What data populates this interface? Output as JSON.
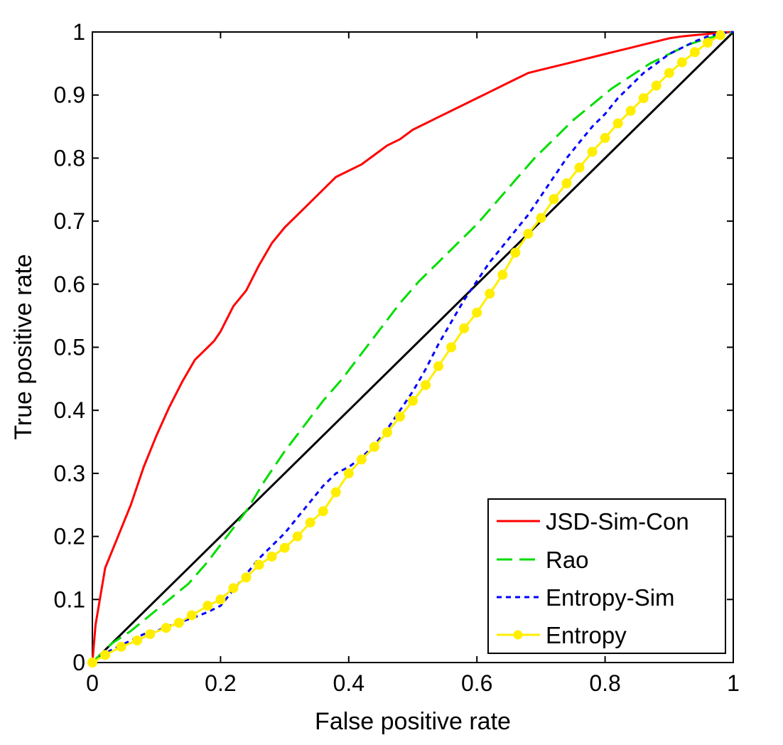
{
  "chart_data": {
    "type": "line",
    "xlabel": "False positive rate",
    "ylabel": "True positive rate",
    "xlim": [
      0,
      1
    ],
    "ylim": [
      0,
      1
    ],
    "xticks": [
      "0",
      "0.2",
      "0.4",
      "0.6",
      "0.8",
      "1"
    ],
    "yticks": [
      "0",
      "0.1",
      "0.2",
      "0.3",
      "0.4",
      "0.5",
      "0.6",
      "0.7",
      "0.8",
      "0.9",
      "1"
    ],
    "grid": false,
    "legend_position": "bottom-right",
    "reference_line": {
      "x": [
        0,
        1
      ],
      "y": [
        0,
        1
      ],
      "color": "#000000"
    },
    "series": [
      {
        "name": "JSD-Sim-Con",
        "color": "#ff0000",
        "style": "solid",
        "x": [
          0,
          0.005,
          0.02,
          0.04,
          0.06,
          0.08,
          0.1,
          0.12,
          0.14,
          0.16,
          0.18,
          0.19,
          0.2,
          0.22,
          0.24,
          0.26,
          0.28,
          0.3,
          0.33,
          0.36,
          0.38,
          0.4,
          0.42,
          0.44,
          0.46,
          0.48,
          0.5,
          0.52,
          0.54,
          0.56,
          0.58,
          0.6,
          0.62,
          0.64,
          0.66,
          0.68,
          0.7,
          0.72,
          0.74,
          0.76,
          0.78,
          0.8,
          0.82,
          0.84,
          0.86,
          0.88,
          0.9,
          0.92,
          0.94,
          0.96,
          0.98,
          1.0
        ],
        "y": [
          0,
          0.06,
          0.15,
          0.2,
          0.25,
          0.31,
          0.36,
          0.405,
          0.445,
          0.48,
          0.5,
          0.51,
          0.525,
          0.565,
          0.59,
          0.63,
          0.665,
          0.69,
          0.72,
          0.75,
          0.77,
          0.78,
          0.79,
          0.805,
          0.82,
          0.83,
          0.845,
          0.855,
          0.865,
          0.875,
          0.885,
          0.895,
          0.905,
          0.915,
          0.925,
          0.935,
          0.94,
          0.945,
          0.95,
          0.955,
          0.96,
          0.965,
          0.97,
          0.975,
          0.98,
          0.985,
          0.99,
          0.993,
          0.995,
          0.997,
          0.999,
          1.0
        ]
      },
      {
        "name": "Rao",
        "color": "#00dd00",
        "style": "dashed",
        "x": [
          0,
          0.03,
          0.06,
          0.09,
          0.12,
          0.15,
          0.18,
          0.21,
          0.24,
          0.27,
          0.3,
          0.33,
          0.36,
          0.39,
          0.42,
          0.45,
          0.48,
          0.51,
          0.54,
          0.57,
          0.6,
          0.63,
          0.66,
          0.69,
          0.72,
          0.75,
          0.78,
          0.81,
          0.84,
          0.87,
          0.9,
          0.93,
          0.96,
          1.0
        ],
        "y": [
          0,
          0.03,
          0.05,
          0.075,
          0.1,
          0.125,
          0.16,
          0.2,
          0.24,
          0.29,
          0.335,
          0.375,
          0.415,
          0.45,
          0.49,
          0.53,
          0.57,
          0.605,
          0.635,
          0.665,
          0.695,
          0.73,
          0.765,
          0.8,
          0.83,
          0.86,
          0.885,
          0.91,
          0.93,
          0.95,
          0.965,
          0.98,
          0.99,
          1.0
        ]
      },
      {
        "name": "Entropy-Sim",
        "color": "#0000ff",
        "style": "dotted",
        "x": [
          0,
          0.02,
          0.04,
          0.06,
          0.08,
          0.1,
          0.12,
          0.14,
          0.16,
          0.18,
          0.2,
          0.22,
          0.24,
          0.26,
          0.28,
          0.3,
          0.32,
          0.34,
          0.36,
          0.38,
          0.4,
          0.42,
          0.44,
          0.46,
          0.48,
          0.5,
          0.52,
          0.54,
          0.56,
          0.58,
          0.6,
          0.62,
          0.64,
          0.66,
          0.68,
          0.7,
          0.72,
          0.74,
          0.76,
          0.78,
          0.8,
          0.82,
          0.84,
          0.86,
          0.88,
          0.9,
          0.92,
          0.94,
          0.96,
          0.98,
          1.0
        ],
        "y": [
          0,
          0.015,
          0.025,
          0.035,
          0.045,
          0.05,
          0.058,
          0.065,
          0.072,
          0.08,
          0.09,
          0.115,
          0.14,
          0.165,
          0.185,
          0.205,
          0.23,
          0.255,
          0.28,
          0.3,
          0.31,
          0.325,
          0.345,
          0.37,
          0.4,
          0.43,
          0.465,
          0.505,
          0.54,
          0.575,
          0.605,
          0.635,
          0.66,
          0.685,
          0.71,
          0.74,
          0.77,
          0.8,
          0.825,
          0.85,
          0.87,
          0.895,
          0.915,
          0.935,
          0.95,
          0.965,
          0.975,
          0.985,
          0.993,
          0.998,
          1.0
        ]
      },
      {
        "name": "Entropy",
        "color": "#ffee00",
        "style": "solid-marker",
        "x": [
          0,
          0.02,
          0.045,
          0.07,
          0.09,
          0.115,
          0.135,
          0.155,
          0.18,
          0.2,
          0.22,
          0.24,
          0.26,
          0.28,
          0.3,
          0.32,
          0.34,
          0.36,
          0.38,
          0.4,
          0.42,
          0.44,
          0.46,
          0.48,
          0.5,
          0.52,
          0.54,
          0.56,
          0.58,
          0.6,
          0.62,
          0.64,
          0.66,
          0.68,
          0.7,
          0.72,
          0.74,
          0.76,
          0.78,
          0.8,
          0.82,
          0.84,
          0.86,
          0.88,
          0.9,
          0.92,
          0.94,
          0.96,
          0.98
        ],
        "y": [
          0,
          0.012,
          0.025,
          0.035,
          0.045,
          0.055,
          0.063,
          0.075,
          0.09,
          0.1,
          0.118,
          0.135,
          0.155,
          0.168,
          0.182,
          0.2,
          0.222,
          0.24,
          0.27,
          0.3,
          0.322,
          0.342,
          0.365,
          0.39,
          0.415,
          0.44,
          0.47,
          0.5,
          0.53,
          0.555,
          0.585,
          0.615,
          0.65,
          0.68,
          0.705,
          0.735,
          0.76,
          0.785,
          0.81,
          0.832,
          0.855,
          0.875,
          0.895,
          0.915,
          0.935,
          0.952,
          0.968,
          0.983,
          0.995
        ]
      }
    ],
    "legend": [
      {
        "label": "JSD-Sim-Con",
        "color": "#ff0000",
        "style": "solid"
      },
      {
        "label": "Rao",
        "color": "#00dd00",
        "style": "dashed"
      },
      {
        "label": "Entropy-Sim",
        "color": "#0000ff",
        "style": "dotted"
      },
      {
        "label": "Entropy",
        "color": "#ffee00",
        "style": "solid-marker"
      }
    ]
  }
}
